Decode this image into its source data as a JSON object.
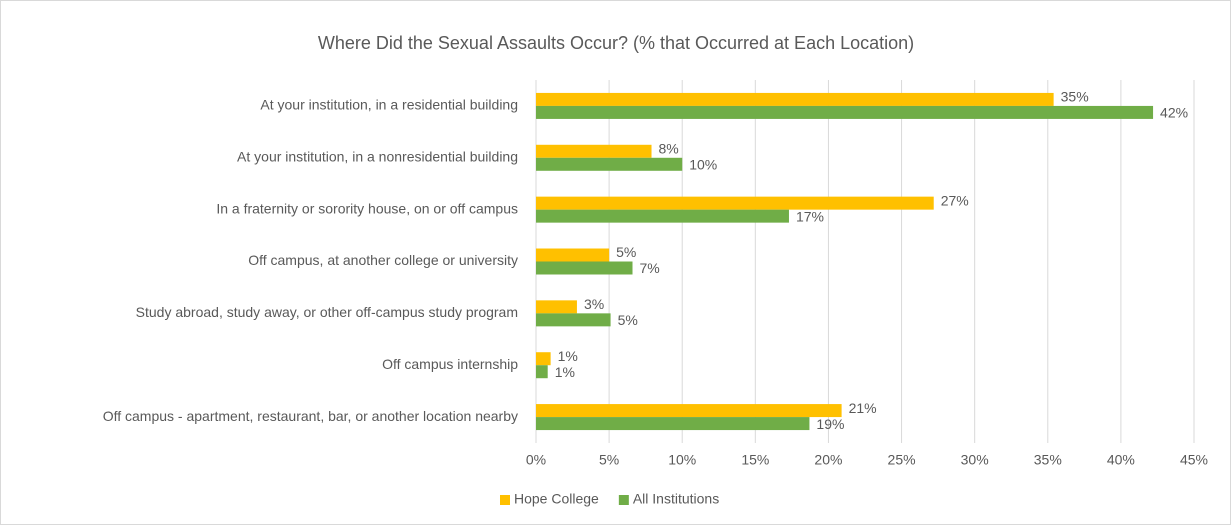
{
  "chart_data": {
    "type": "bar",
    "orientation": "horizontal",
    "title": "Where Did the Sexual Assaults Occur? (% that Occurred at Each Location)",
    "categories": [
      "At your institution, in a residential building",
      "At your institution, in a nonresidential building",
      "In a fraternity or sorority house, on or off campus",
      "Off campus, at another college or university",
      "Study abroad, study away, or other off-campus study program",
      "Off campus internship",
      "Off campus - apartment, restaurant, bar, or another location nearby"
    ],
    "series": [
      {
        "name": "Hope College",
        "color": "#ffc000",
        "values": [
          35.4,
          7.9,
          27.2,
          5.0,
          2.8,
          1.0,
          20.9
        ],
        "value_labels": [
          "35%",
          "8%",
          "27%",
          "5%",
          "3%",
          "1%",
          "21%"
        ]
      },
      {
        "name": "All Institutions",
        "color": "#70ad47",
        "values": [
          42.2,
          10.0,
          17.3,
          6.6,
          5.1,
          0.8,
          18.7
        ],
        "value_labels": [
          "42%",
          "10%",
          "17%",
          "7%",
          "5%",
          "1%",
          "19%"
        ]
      }
    ],
    "xlim": [
      0,
      45
    ],
    "xticks": [
      {
        "value": 0,
        "label": "0%"
      },
      {
        "value": 5,
        "label": "5%"
      },
      {
        "value": 10,
        "label": "10%"
      },
      {
        "value": 15,
        "label": "15%"
      },
      {
        "value": 20,
        "label": "20%"
      },
      {
        "value": 25,
        "label": "25%"
      },
      {
        "value": 30,
        "label": "30%"
      },
      {
        "value": 35,
        "label": "35%"
      },
      {
        "value": 40,
        "label": "40%"
      },
      {
        "value": 45,
        "label": "45%"
      }
    ],
    "grid": true,
    "legend": "bottom"
  }
}
